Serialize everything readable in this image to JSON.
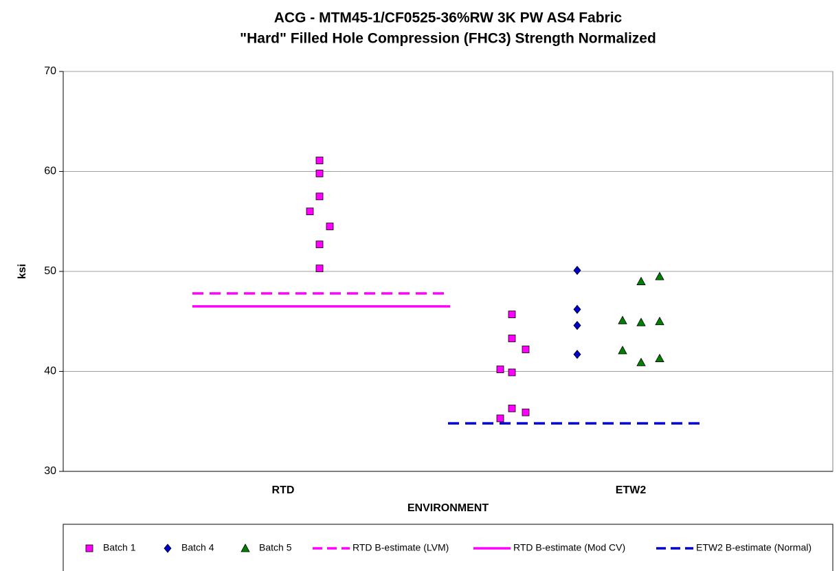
{
  "chart_data": {
    "type": "scatter",
    "title": [
      "ACG - MTM45-1/CF0525-36%RW 3K PW AS4 Fabric",
      "\"Hard\" Filled Hole Compression (FHC3) Strength Normalized"
    ],
    "x_label": "ENVIRONMENT",
    "y_label": "ksi",
    "xlim": [
      0,
      11.2
    ],
    "xticks": [
      {
        "value": 3.2,
        "label": "RTD"
      },
      {
        "value": 8.26,
        "label": "ETW2"
      }
    ],
    "ylim": [
      30,
      70
    ],
    "yticks": [
      30,
      40,
      50,
      60,
      70
    ],
    "grid": true,
    "legend": "bottom",
    "series": [
      {
        "name": "Batch 1",
        "color": "#ff00ff",
        "marker": "square",
        "x": [
          3.59,
          3.73,
          3.73,
          3.73,
          3.73,
          3.73,
          3.88,
          6.36,
          6.36,
          6.53,
          6.53,
          6.53,
          6.53,
          6.73,
          6.73
        ],
        "values": [
          56.0,
          61.1,
          59.8,
          57.5,
          52.7,
          50.3,
          54.5,
          40.2,
          35.3,
          45.7,
          43.3,
          39.9,
          36.3,
          42.2,
          35.9
        ]
      },
      {
        "name": "Batch 4",
        "color": "#0000cc",
        "marker": "diamond",
        "x": [
          7.48,
          7.48,
          7.48,
          7.48
        ],
        "values": [
          50.1,
          46.2,
          44.6,
          41.7
        ]
      },
      {
        "name": "Batch 5",
        "color": "#008000",
        "marker": "triangle",
        "x": [
          8.14,
          8.14,
          8.41,
          8.41,
          8.41,
          8.68,
          8.68,
          8.68
        ],
        "values": [
          45.1,
          42.1,
          49.0,
          44.9,
          40.9,
          49.5,
          45.0,
          41.3
        ]
      },
      {
        "name": "RTD B-estimate  (LVM)",
        "color": "#ff00ff",
        "line": "dashed",
        "x": [
          1.88,
          5.63
        ],
        "values": [
          47.8,
          47.8
        ]
      },
      {
        "name": "RTD B-estimate (Mod CV)",
        "color": "#ff00ff",
        "line": "solid",
        "x": [
          1.88,
          5.63
        ],
        "values": [
          46.5,
          46.5
        ]
      },
      {
        "name": "ETW2 B-estimate (Normal)",
        "color": "#0000cc",
        "line": "dashed",
        "x": [
          5.6,
          9.26
        ],
        "values": [
          34.8,
          34.8
        ]
      }
    ]
  }
}
